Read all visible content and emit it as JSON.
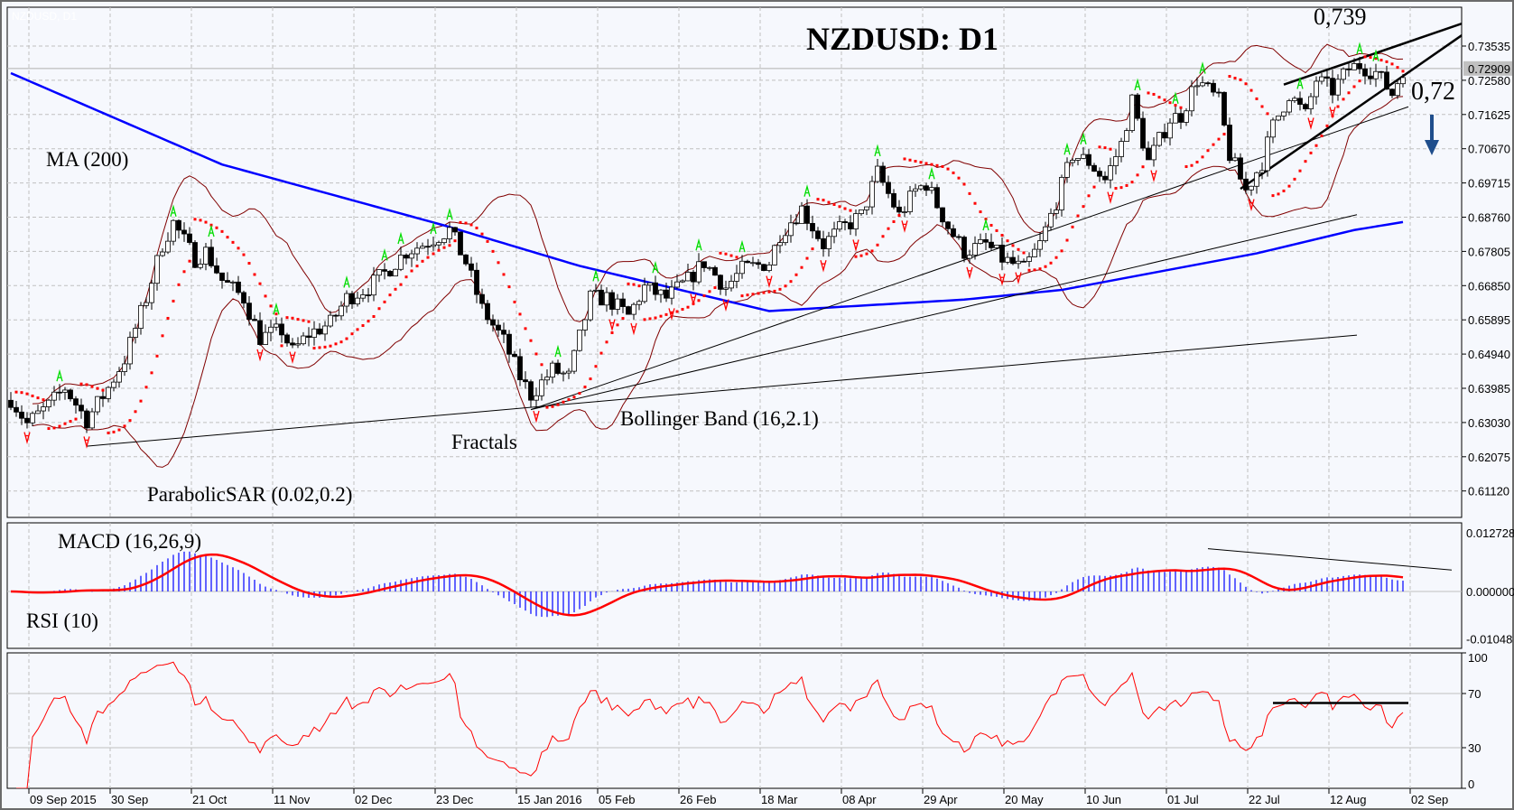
{
  "chart_data": {
    "type": "candlestick",
    "title": "NZDUSD: D1",
    "watermark": "NZDUSD, D1",
    "current_price": "0.72909",
    "price_ticks": [
      "0.73535",
      "0.72580",
      "0.71625",
      "0.70670",
      "0.69715",
      "0.68760",
      "0.67805",
      "0.66850",
      "0.65895",
      "0.64940",
      "0.63985",
      "0.63030",
      "0.62075",
      "0.61120"
    ],
    "price_range": [
      0.6035,
      0.7475
    ],
    "date_ticks": [
      "09 Sep 2015",
      "30 Sep",
      "21 Oct",
      "11 Nov",
      "02 Dec",
      "23 Dec",
      "15 Jan 2016",
      "05 Feb",
      "26 Feb",
      "18 Mar",
      "08 Apr",
      "29 Apr",
      "20 May",
      "10 Jun",
      "01 Jul",
      "22 Jul",
      "12 Aug",
      "02 Sep"
    ],
    "bars": 258,
    "close_keypoints": [
      [
        0,
        0.637
      ],
      [
        3,
        0.63
      ],
      [
        7,
        0.635
      ],
      [
        10,
        0.64
      ],
      [
        14,
        0.631
      ],
      [
        18,
        0.64
      ],
      [
        21,
        0.648
      ],
      [
        25,
        0.665
      ],
      [
        28,
        0.68
      ],
      [
        30,
        0.686
      ],
      [
        34,
        0.676
      ],
      [
        36,
        0.678
      ],
      [
        39,
        0.67
      ],
      [
        43,
        0.665
      ],
      [
        46,
        0.654
      ],
      [
        50,
        0.656
      ],
      [
        52,
        0.65
      ],
      [
        55,
        0.655
      ],
      [
        59,
        0.658
      ],
      [
        62,
        0.665
      ],
      [
        66,
        0.668
      ],
      [
        69,
        0.672
      ],
      [
        73,
        0.678
      ],
      [
        76,
        0.68
      ],
      [
        81,
        0.684
      ],
      [
        84,
        0.675
      ],
      [
        87,
        0.662
      ],
      [
        91,
        0.653
      ],
      [
        94,
        0.643
      ],
      [
        96,
        0.638
      ],
      [
        100,
        0.645
      ],
      [
        103,
        0.643
      ],
      [
        107,
        0.665
      ],
      [
        110,
        0.665
      ],
      [
        114,
        0.66
      ],
      [
        117,
        0.668
      ],
      [
        121,
        0.665
      ],
      [
        125,
        0.67
      ],
      [
        128,
        0.675
      ],
      [
        132,
        0.668
      ],
      [
        135,
        0.673
      ],
      [
        140,
        0.675
      ],
      [
        142,
        0.683
      ],
      [
        146,
        0.69
      ],
      [
        150,
        0.68
      ],
      [
        153,
        0.684
      ],
      [
        157,
        0.688
      ],
      [
        160,
        0.7
      ],
      [
        164,
        0.688
      ],
      [
        167,
        0.695
      ],
      [
        169,
        0.697
      ],
      [
        173,
        0.685
      ],
      [
        176,
        0.678
      ],
      [
        180,
        0.68
      ],
      [
        183,
        0.676
      ],
      [
        187,
        0.673
      ],
      [
        190,
        0.68
      ],
      [
        193,
        0.692
      ],
      [
        196,
        0.705
      ],
      [
        199,
        0.703
      ],
      [
        202,
        0.698
      ],
      [
        205,
        0.708
      ],
      [
        207,
        0.72
      ],
      [
        210,
        0.703
      ],
      [
        214,
        0.715
      ],
      [
        216,
        0.716
      ],
      [
        219,
        0.726
      ],
      [
        223,
        0.72
      ],
      [
        225,
        0.705
      ],
      [
        228,
        0.695
      ],
      [
        231,
        0.703
      ],
      [
        233,
        0.713
      ],
      [
        236,
        0.722
      ],
      [
        239,
        0.716
      ],
      [
        241,
        0.726
      ],
      [
        244,
        0.723
      ],
      [
        247,
        0.729
      ],
      [
        249,
        0.73
      ],
      [
        252,
        0.728
      ],
      [
        255,
        0.722
      ],
      [
        257,
        0.729
      ]
    ],
    "ma200_keypoints": [
      [
        0,
        0.7278
      ],
      [
        39,
        0.7023
      ],
      [
        80,
        0.6853
      ],
      [
        105,
        0.674
      ],
      [
        140,
        0.6614
      ],
      [
        176,
        0.6646
      ],
      [
        194,
        0.6673
      ],
      [
        230,
        0.6775
      ],
      [
        248,
        0.684
      ],
      [
        258,
        0.6865
      ]
    ],
    "trendlines": [
      {
        "from": [
          14,
          0.6237
        ],
        "to": [
          248.5,
          0.6547
        ],
        "weight": "thin"
      },
      {
        "from": [
          96,
          0.6339
        ],
        "to": [
          248.5,
          0.6883
        ],
        "weight": "thin"
      },
      {
        "from": [
          96,
          0.6339
        ],
        "to": [
          258,
          0.7184
        ],
        "weight": "thin"
      },
      {
        "from": [
          235,
          0.7246
        ],
        "to": [
          275,
          0.7453
        ],
        "weight": "bold"
      },
      {
        "from": [
          227,
          0.6955
        ],
        "to": [
          268,
          0.7385
        ],
        "weight": "bold"
      }
    ],
    "macd": {
      "label": "MACD (16,26,9)",
      "fast": 16,
      "slow": 26,
      "signal": 9,
      "ticks": [
        "0.012728",
        "0.000000",
        "-0.01048"
      ],
      "range": [
        -0.01048,
        0.012728
      ],
      "trendline": {
        "from": [
          221,
          0.00862
        ],
        "to": [
          266,
          0.00431
        ]
      }
    },
    "rsi": {
      "label": "RSI (10)",
      "period": 10,
      "ticks": [
        "100",
        "70",
        "30",
        "0"
      ],
      "levels": [
        70,
        30
      ],
      "trendline": {
        "from": [
          233,
          63
        ],
        "to": [
          258,
          63
        ]
      }
    },
    "bollinger": {
      "label": "Bollinger Band (16,2.1)",
      "period": 16,
      "dev": 2.1
    },
    "sar": {
      "label": "ParabolicSAR (0.02,0.2)",
      "step": 0.02,
      "max": 0.2
    },
    "fractals_label": "Fractals",
    "ma_label": "MA (200)",
    "annotations": {
      "high": "0,739",
      "target": "0,72"
    },
    "colors": {
      "bg": "#f6f8fd",
      "ma": "#0000ff",
      "band": "#800000",
      "sar": "#ff0000",
      "fr_up": "#00dd00",
      "fr_dn": "#ff0000",
      "macd_hist": "#0000ff",
      "macd_sig": "#ff0000",
      "rsi": "#ff0000",
      "arrow": "#1f4e8c"
    }
  }
}
